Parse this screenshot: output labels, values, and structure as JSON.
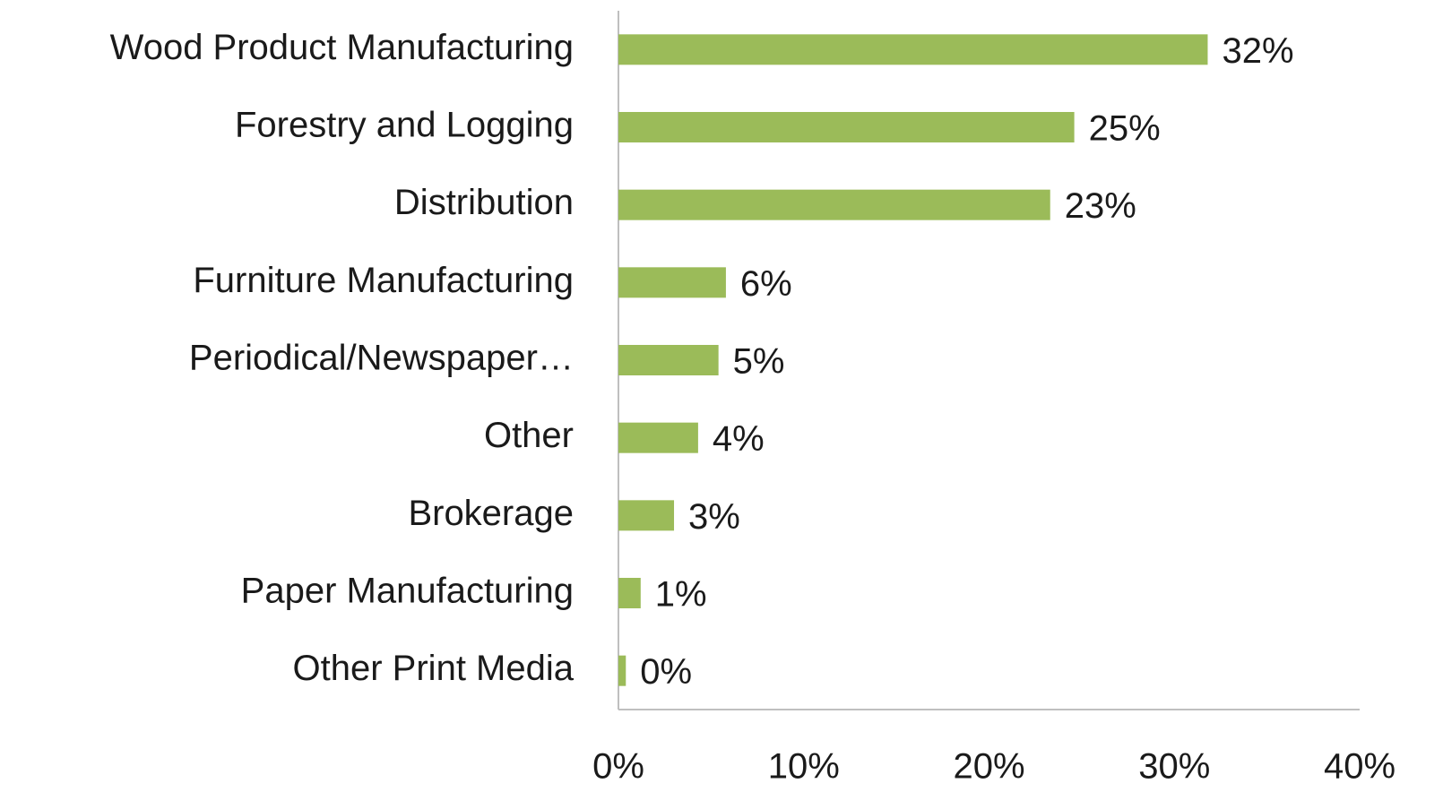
{
  "chart_data": {
    "type": "barh",
    "categories": [
      "Wood Product Manufacturing",
      "Forestry and Logging",
      "Distribution",
      "Furniture Manufacturing",
      "Periodical/Newspaper…",
      "Other",
      "Brokerage",
      "Paper Manufacturing",
      "Other Print Media"
    ],
    "values": [
      31.8,
      24.6,
      23.3,
      5.8,
      5.4,
      4.3,
      3.0,
      1.2,
      0.4
    ],
    "value_labels": [
      "32%",
      "25%",
      "23%",
      "6%",
      "5%",
      "4%",
      "3%",
      "1%",
      "0%"
    ],
    "color": "#9bbb59",
    "xlim": [
      0,
      40
    ],
    "xticks": [
      {
        "value": 0,
        "label": "0%"
      },
      {
        "value": 10,
        "label": "10%"
      },
      {
        "value": 20,
        "label": "20%"
      },
      {
        "value": 30,
        "label": "30%"
      },
      {
        "value": 40,
        "label": "40%"
      }
    ],
    "grid": false
  }
}
